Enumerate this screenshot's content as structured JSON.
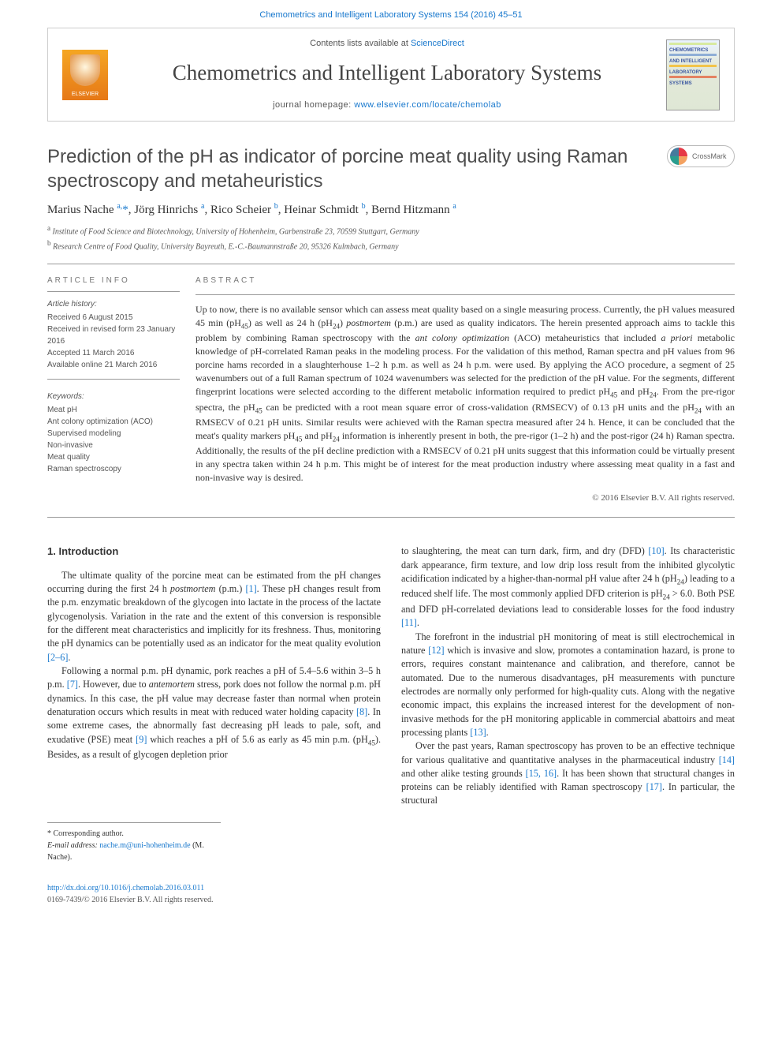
{
  "top_link": {
    "journal": "Chemometrics and Intelligent Laboratory Systems 154 (2016) 45–51"
  },
  "header": {
    "contents_prefix": "Contents lists available at ",
    "contents_link": "ScienceDirect",
    "journal_name": "Chemometrics and Intelligent Laboratory Systems",
    "homepage_prefix": "journal homepage: ",
    "homepage_url": "www.elsevier.com/locate/chemolab",
    "elsevier_label": "ELSEVIER",
    "cover_lines": [
      "CHEMOMETRICS",
      "AND INTELLIGENT",
      "LABORATORY",
      "SYSTEMS"
    ]
  },
  "article": {
    "title": "Prediction of the pH as indicator of porcine meat quality using Raman spectroscopy and metaheuristics",
    "crossmark": "CrossMark",
    "authors_html": "Marius Nache <sup><a>a,</a></sup><a>*</a>, Jörg Hinrichs <sup><a>a</a></sup>, Rico Scheier <sup><a>b</a></sup>, Heinar Schmidt <sup><a>b</a></sup>, Bernd Hitzmann <sup><a>a</a></sup>",
    "affiliations": [
      {
        "sup": "a",
        "text": "Institute of Food Science and Biotechnology, University of Hohenheim, Garbenstraße 23, 70599 Stuttgart, Germany"
      },
      {
        "sup": "b",
        "text": "Research Centre of Food Quality, University Bayreuth, E.-C.-Baumannstraße 20, 95326 Kulmbach, Germany"
      }
    ]
  },
  "info": {
    "section_label": "article info",
    "history_label": "Article history:",
    "history": [
      "Received 6 August 2015",
      "Received in revised form 23 January 2016",
      "Accepted 11 March 2016",
      "Available online 21 March 2016"
    ],
    "keywords_label": "Keywords:",
    "keywords": [
      "Meat pH",
      "Ant colony optimization (ACO)",
      "Supervised modeling",
      "Non-invasive",
      "Meat quality",
      "Raman spectroscopy"
    ]
  },
  "abstract": {
    "label": "abstract",
    "text_html": "Up to now, there is no available sensor which can assess meat quality based on a single measuring process. Currently, the pH values measured 45 min (pH<sub>45</sub>) as well as 24 h (pH<sub>24</sub>) <em>postmortem</em> (p.m.) are used as quality indicators. The herein presented approach aims to tackle this problem by combining Raman spectroscopy with the <em>ant colony optimization</em> (ACO) metaheuristics that included <em>a priori</em> metabolic knowledge of pH-correlated Raman peaks in the modeling process. For the validation of this method, Raman spectra and pH values from 96 porcine hams recorded in a slaughterhouse 1–2 h p.m. as well as 24 h p.m. were used. By applying the ACO procedure, a segment of 25 wavenumbers out of a full Raman spectrum of 1024 wavenumbers was selected for the prediction of the pH value. For the segments, different fingerprint locations were selected according to the different metabolic information required to predict pH<sub>45</sub> and pH<sub>24</sub>. From the pre-rigor spectra, the pH<sub>45</sub> can be predicted with a root mean square error of cross-validation (RMSECV) of 0.13 pH units and the pH<sub>24</sub> with an RMSECV of 0.21 pH units. Similar results were achieved with the Raman spectra measured after 24 h. Hence, it can be concluded that the meat's quality markers pH<sub>45</sub> and pH<sub>24</sub> information is inherently present in both, the pre-rigor (1–2 h) and the post-rigor (24 h) Raman spectra. Additionally, the results of the pH decline prediction with a RMSECV of 0.21 pH units suggest that this information could be virtually present in any spectra taken within 24 h p.m. This might be of interest for the meat production industry where assessing meat quality in a fast and non-invasive way is desired.",
    "copyright": "© 2016 Elsevier B.V. All rights reserved."
  },
  "body": {
    "intro_heading": "1. Introduction",
    "left_paragraphs": [
      "The ultimate quality of the porcine meat can be estimated from the pH changes occurring during the first 24 h <em>postmortem</em> (p.m.) <span class='ref'>[1]</span>. These pH changes result from the p.m. enzymatic breakdown of the glycogen into lactate in the process of the lactate glycogenolysis. Variation in the rate and the extent of this conversion is responsible for the different meat characteristics and implicitly for its freshness. Thus, monitoring the pH dynamics can be potentially used as an indicator for the meat quality evolution <span class='ref'>[2–6]</span>.",
      "Following a normal p.m. pH dynamic, pork reaches a pH of 5.4–5.6 within 3–5 h p.m. <span class='ref'>[7]</span>. However, due to <em>antemortem</em> stress, pork does not follow the normal p.m. pH dynamics. In this case, the pH value may decrease faster than normal when protein denaturation occurs which results in meat with reduced water holding capacity <span class='ref'>[8]</span>. In some extreme cases, the abnormally fast decreasing pH leads to pale, soft, and exudative (PSE) meat <span class='ref'>[9]</span> which reaches a pH of 5.6 as early as 45 min p.m. (pH<sub>45</sub>). Besides, as a result of glycogen depletion prior"
    ],
    "right_paragraphs": [
      "to slaughtering, the meat can turn dark, firm, and dry (DFD) <span class='ref'>[10]</span>. Its characteristic dark appearance, firm texture, and low drip loss result from the inhibited glycolytic acidification indicated by a higher-than-normal pH value after 24 h (pH<sub>24</sub>) leading to a reduced shelf life. The most commonly applied DFD criterion is pH<sub>24</sub> > 6.0. Both PSE and DFD pH-correlated deviations lead to considerable losses for the food industry <span class='ref'>[11]</span>.",
      "The forefront in the industrial pH monitoring of meat is still electrochemical in nature <span class='ref'>[12]</span> which is invasive and slow, promotes a contamination hazard, is prone to errors, requires constant maintenance and calibration, and therefore, cannot be automated. Due to the numerous disadvantages, pH measurements with puncture electrodes are normally only performed for high-quality cuts. Along with the negative economic impact, this explains the increased interest for the development of non-invasive methods for the pH monitoring applicable in commercial abattoirs and meat processing plants <span class='ref'>[13]</span>.",
      "Over the past years, Raman spectroscopy has proven to be an effective technique for various qualitative and quantitative analyses in the pharmaceutical industry <span class='ref'>[14]</span> and other alike testing grounds <span class='ref'>[15, 16]</span>. It has been shown that structural changes in proteins can be reliably identified with Raman spectroscopy <span class='ref'>[17]</span>. In particular, the structural"
    ]
  },
  "footer": {
    "corr_label": "* Corresponding author.",
    "email_label": "E-mail address:",
    "email": "nache.m@uni-hohenheim.de",
    "email_name": "(M. Nache).",
    "doi": "http://dx.doi.org/10.1016/j.chemolab.2016.03.011",
    "issn": "0169-7439/© 2016 Elsevier B.V. All rights reserved."
  }
}
